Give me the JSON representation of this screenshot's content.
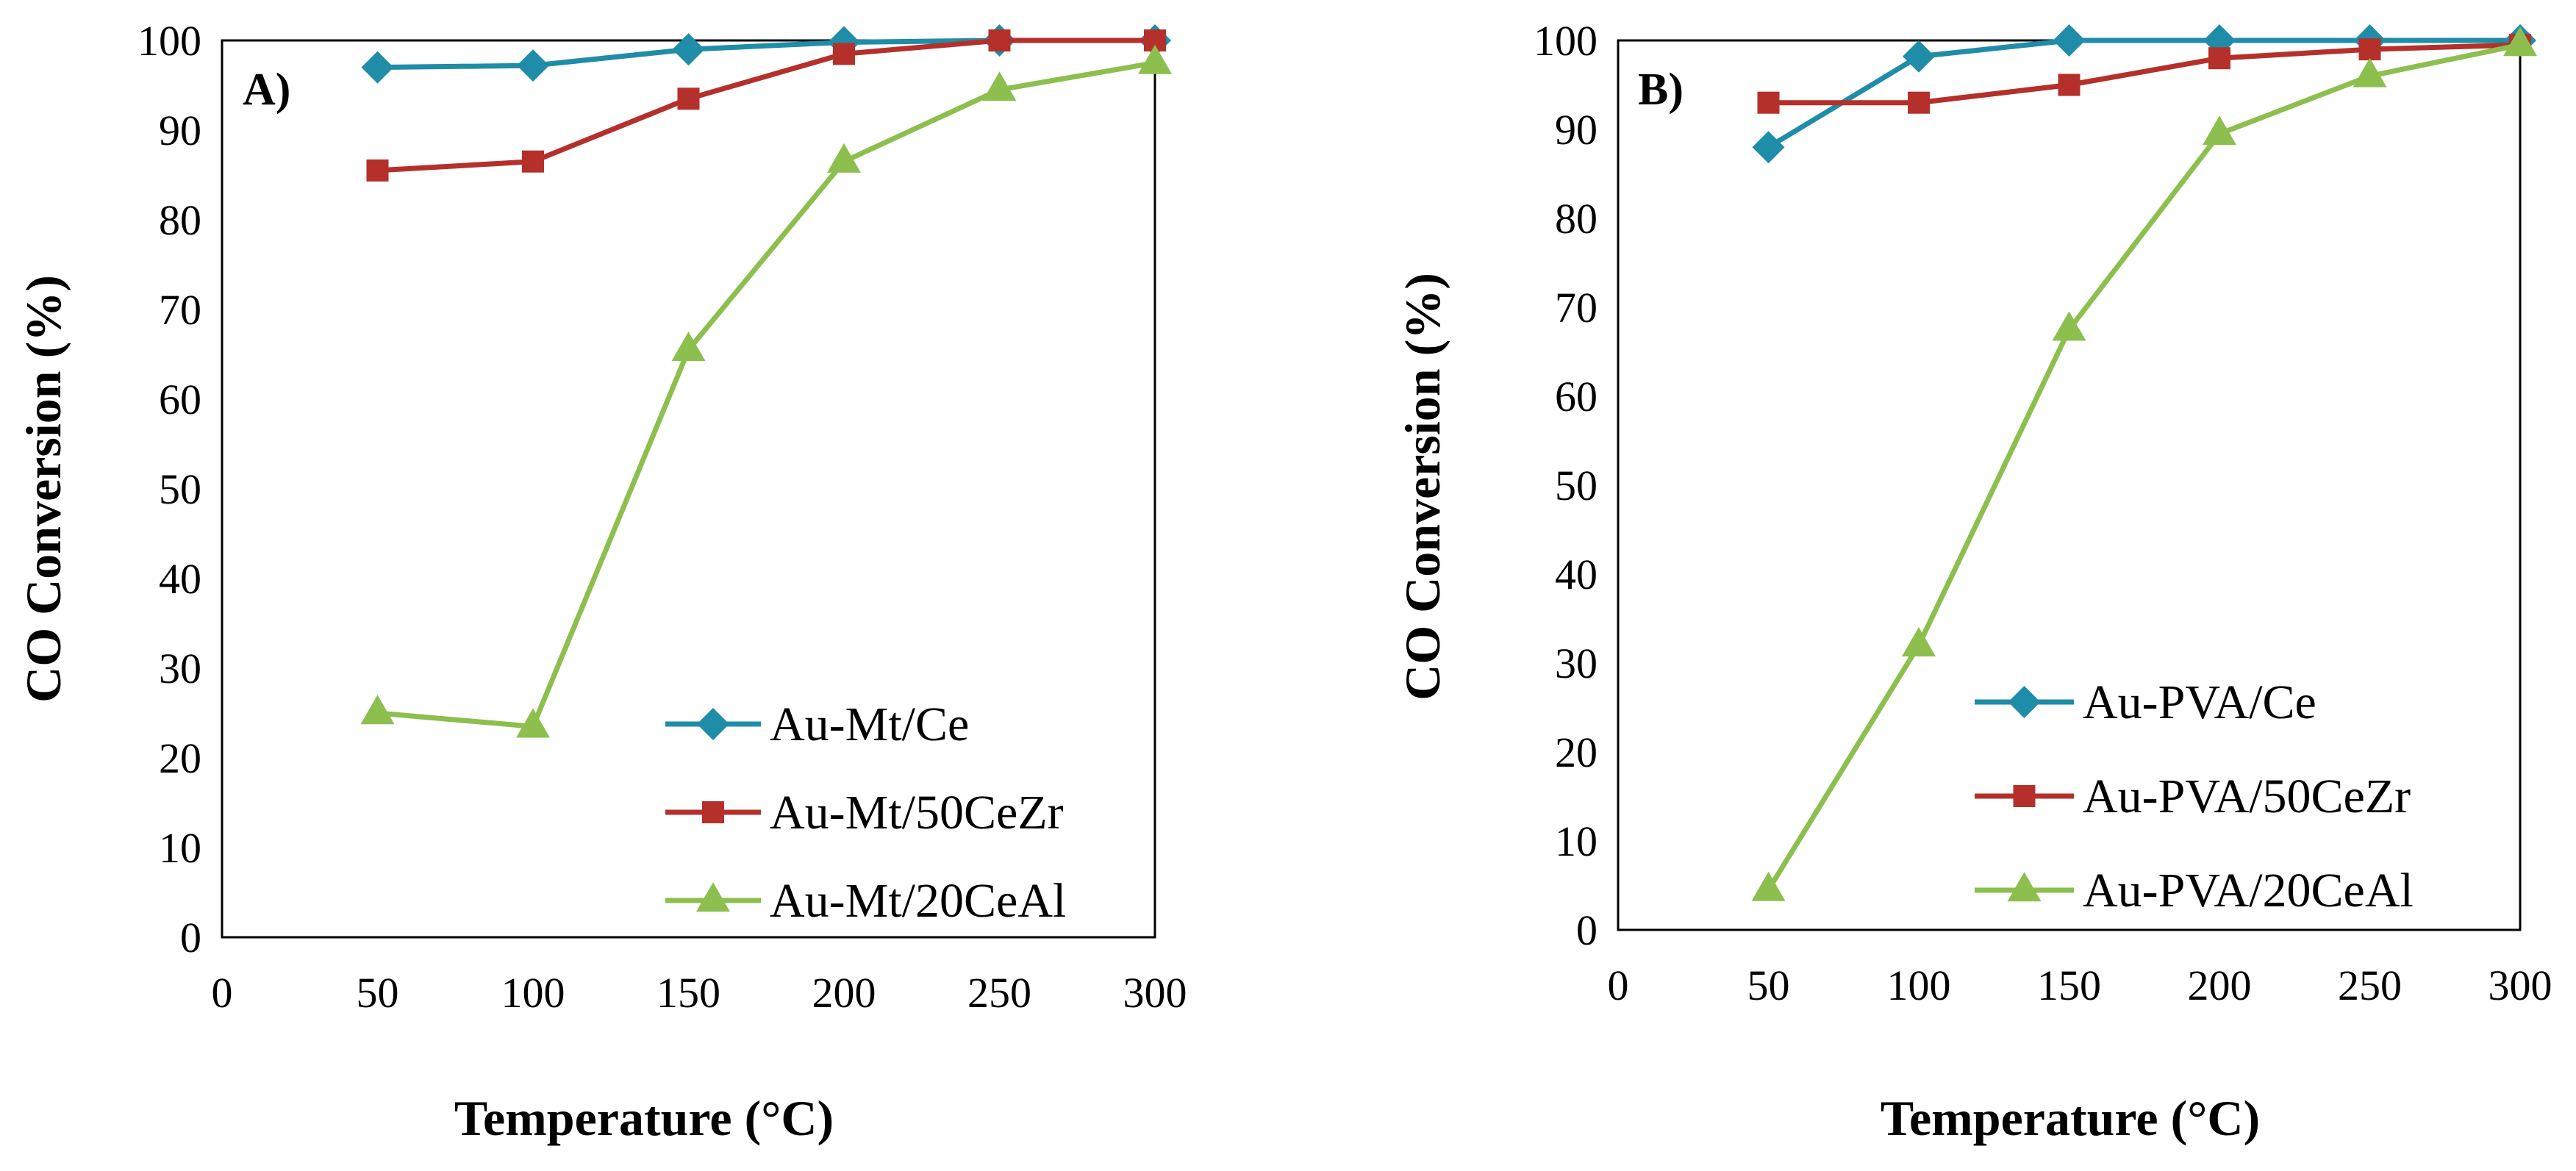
{
  "colors": {
    "series_ce": "#1F8DA8",
    "series_cezr": "#B5302B",
    "series_ceal": "#8CBF4E",
    "axis": "#000000"
  },
  "chart_data": [
    {
      "type": "line",
      "panel_label": "A)",
      "xlabel": "Temperature (°C)",
      "ylabel": "CO Conversion (%)",
      "xlim": [
        0,
        300
      ],
      "ylim": [
        0,
        100
      ],
      "xticks": [
        0,
        50,
        100,
        150,
        200,
        250,
        300
      ],
      "xtick_labels": [
        "0",
        "50",
        "100",
        "150",
        "200",
        "250",
        "300"
      ],
      "yticks": [
        0,
        10,
        20,
        30,
        40,
        50,
        60,
        70,
        80,
        90,
        100
      ],
      "ytick_labels": [
        "0",
        "10",
        "20",
        "30",
        "40",
        "50",
        "60",
        "70",
        "80",
        "90",
        "100"
      ],
      "grid": false,
      "legend_position": "bottom-right",
      "x": [
        50,
        100,
        150,
        200,
        250,
        300
      ],
      "series": [
        {
          "name": "Au-Mt/Ce",
          "color_key": "series_ce",
          "marker": "diamond",
          "values": [
            97,
            97.2,
            99,
            99.8,
            100,
            100
          ]
        },
        {
          "name": "Au-Mt/50CeZr",
          "color_key": "series_cezr",
          "marker": "square",
          "values": [
            85.5,
            86.5,
            93.5,
            98.5,
            100,
            100
          ]
        },
        {
          "name": "Au-Mt/20CeAl",
          "color_key": "series_ceal",
          "marker": "triangle",
          "values": [
            25,
            23.5,
            65.5,
            86.5,
            94.5,
            97.5
          ]
        }
      ]
    },
    {
      "type": "line",
      "panel_label": "B)",
      "xlabel": "Temperature (°C)",
      "ylabel": "CO Conversion (%)",
      "xlim": [
        0,
        300
      ],
      "ylim": [
        0,
        100
      ],
      "xticks": [
        0,
        50,
        100,
        150,
        200,
        250,
        300
      ],
      "xtick_labels": [
        "0",
        "50",
        "100",
        "150",
        "200",
        "250",
        "300"
      ],
      "yticks": [
        0,
        10,
        20,
        30,
        40,
        50,
        60,
        70,
        80,
        90,
        100
      ],
      "ytick_labels": [
        "0",
        "10",
        "20",
        "30",
        "40",
        "50",
        "60",
        "70",
        "80",
        "90",
        "100"
      ],
      "grid": false,
      "legend_position": "bottom-right",
      "x": [
        50,
        100,
        150,
        200,
        250,
        300
      ],
      "series": [
        {
          "name": "Au-PVA/Ce",
          "color_key": "series_ce",
          "marker": "diamond",
          "values": [
            88,
            98.2,
            100,
            100,
            100,
            100
          ]
        },
        {
          "name": "Au-PVA/50CeZr",
          "color_key": "series_cezr",
          "marker": "square",
          "values": [
            93,
            93,
            95,
            98,
            99,
            99.5
          ]
        },
        {
          "name": "Au-PVA/20CeAl",
          "color_key": "series_ceal",
          "marker": "triangle",
          "values": [
            4.5,
            32,
            67.5,
            89.5,
            96,
            99.5
          ]
        }
      ]
    }
  ]
}
